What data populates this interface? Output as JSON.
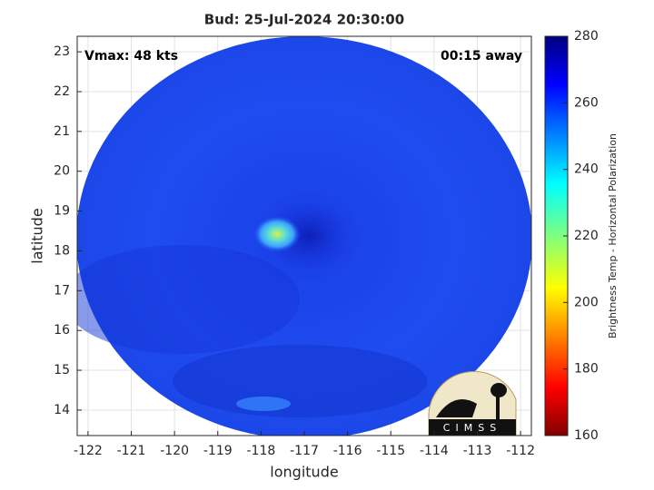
{
  "chart_data": {
    "type": "map",
    "title": "Bud: 25-Jul-2024 20:30:00",
    "annotations": [
      "Vmax: 48 kts",
      "00:15 away"
    ],
    "x_label": "longitude",
    "y_label": "latitude",
    "xlim": [
      -122.25,
      -111.75
    ],
    "xticks": [
      -122,
      -121,
      -120,
      -119,
      -118,
      -117,
      -116,
      -115,
      -114,
      -113,
      -112
    ],
    "ylim": [
      13.36,
      23.39
    ],
    "yticks": [
      14,
      15,
      16,
      17,
      18,
      19,
      20,
      21,
      22,
      23
    ],
    "grid": true,
    "colorbar": {
      "label": "Brightness Temp - Horizontal Polarization",
      "lim": [
        160,
        280
      ],
      "ticks": [
        160,
        180,
        200,
        220,
        240,
        260,
        280
      ]
    }
  },
  "logo_text": "CIMSS"
}
